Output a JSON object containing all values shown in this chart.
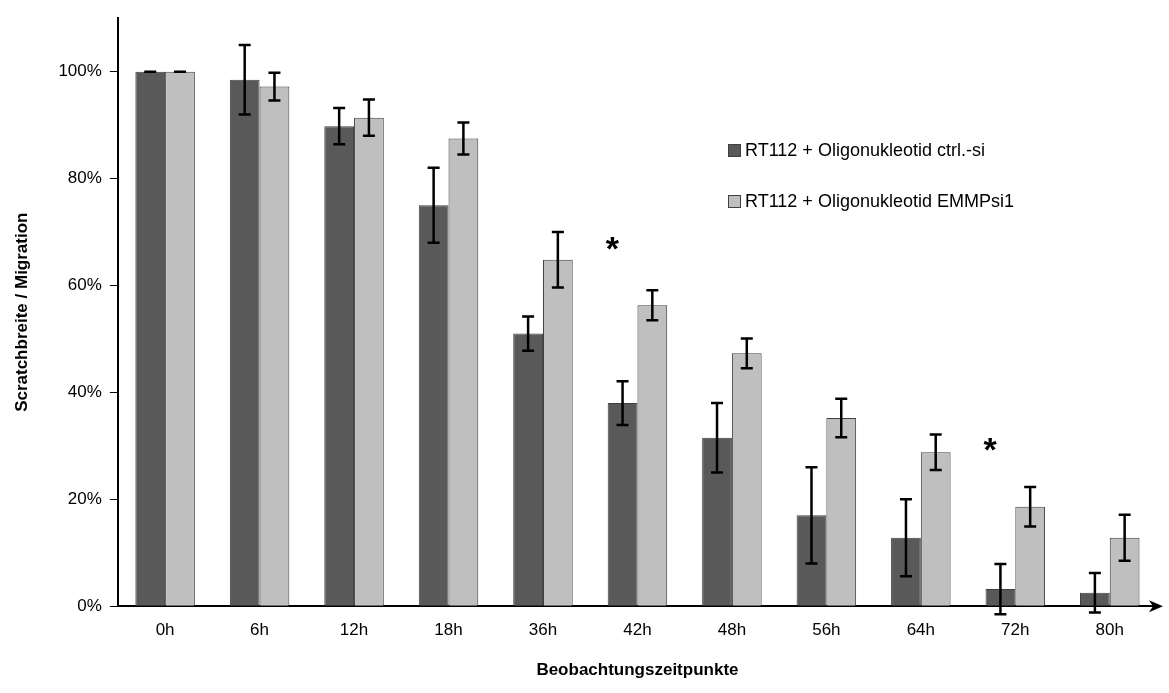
{
  "chart_data": {
    "type": "bar",
    "xlabel": "Beobachtungszeitpunkte",
    "ylabel": "Scratchbreite / Migration",
    "categories": [
      "0h",
      "6h",
      "12h",
      "18h",
      "36h",
      "42h",
      "48h",
      "56h",
      "64h",
      "72h",
      "80h"
    ],
    "series": [
      {
        "name": "RT112 + Oligonukleotid ctrl.-si",
        "color": "#595959",
        "values": [
          100,
          98.5,
          89.8,
          75,
          51,
          38,
          31.5,
          17,
          12.8,
          3.2,
          2.5
        ],
        "errors": [
          0,
          6.5,
          3.4,
          7,
          3.2,
          4.1,
          6.5,
          9,
          7.2,
          4.7,
          3.7
        ]
      },
      {
        "name": "RT112 + Oligonukleotid EMMPsi1",
        "color": "#bfbfbf",
        "values": [
          100,
          97.2,
          91.4,
          87.5,
          64.8,
          56.3,
          47.3,
          35.2,
          28.8,
          18.6,
          12.8
        ],
        "errors": [
          0,
          2.6,
          3.4,
          3,
          5.2,
          2.8,
          2.8,
          3.6,
          3.3,
          3.7,
          4.3
        ]
      }
    ],
    "ylim": [
      0,
      110
    ],
    "yticks": [
      {
        "value": 0,
        "label": "0%"
      },
      {
        "value": 20,
        "label": "20%"
      },
      {
        "value": 40,
        "label": "40%"
      },
      {
        "value": 60,
        "label": "60%"
      },
      {
        "value": 80,
        "label": "80%"
      },
      {
        "value": 100,
        "label": "100%"
      }
    ],
    "grid": false,
    "legend": "top right",
    "annotations": [
      "*",
      "*"
    ]
  }
}
